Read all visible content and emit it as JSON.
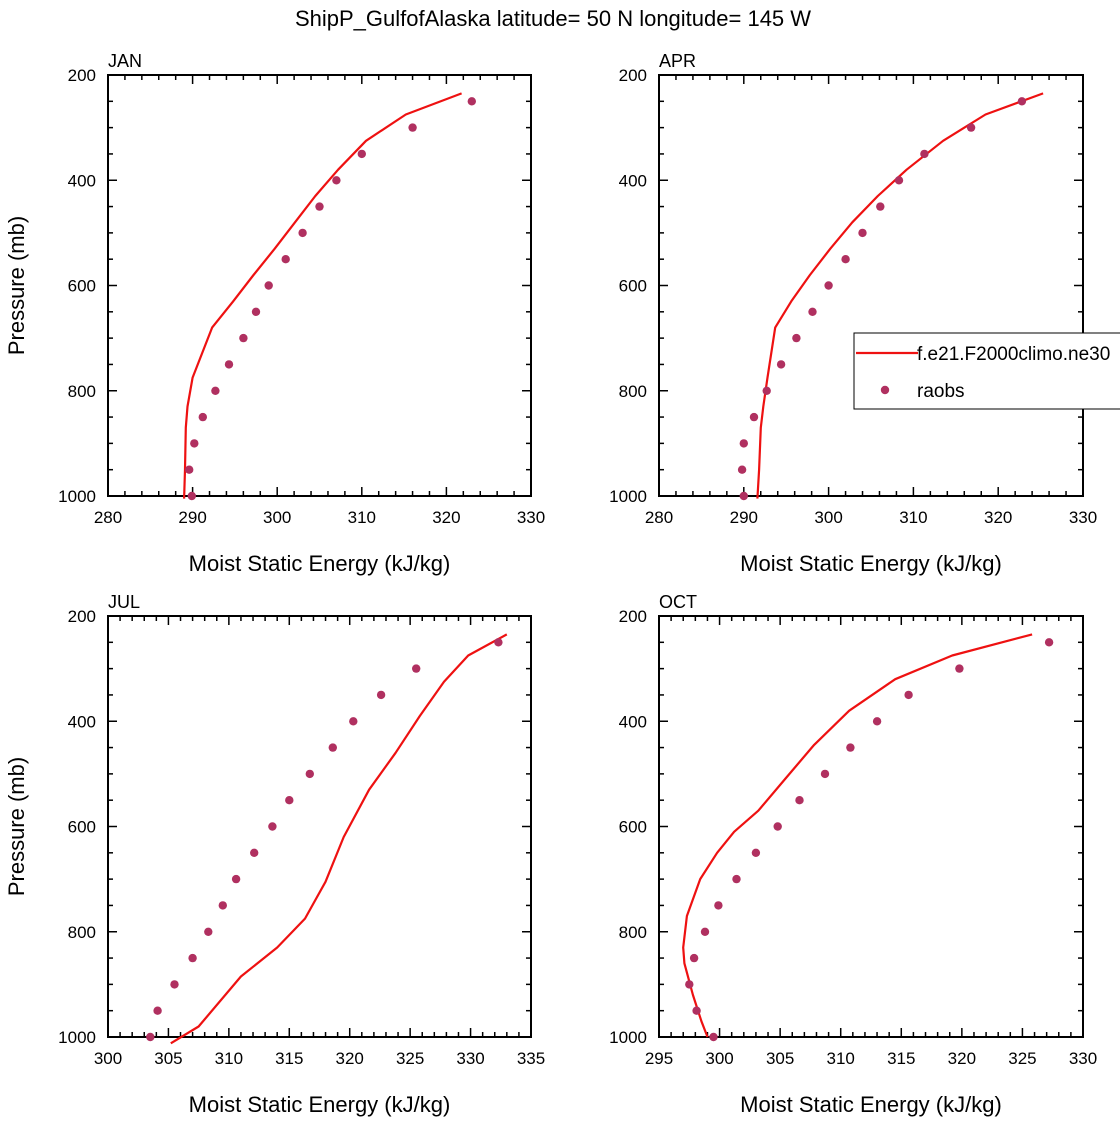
{
  "figure_title": "ShipP_GulfofAlaska  latitude= 50 N longitude= 145 W",
  "colors": {
    "model": "#ee1111",
    "obs": "#b03060",
    "axis": "#000000"
  },
  "legend": {
    "model_label": "f.e21.F2000climo.ne30",
    "obs_label": "raobs"
  },
  "chart_data": [
    {
      "type": "line+scatter",
      "panel": "JAN",
      "title": "JAN",
      "xlabel": "Moist Static Energy (kJ/kg)",
      "ylabel": "Pressure (mb)",
      "xlim": [
        280,
        330
      ],
      "ylim": [
        1000,
        200
      ],
      "grid": false,
      "xticks": [
        280,
        290,
        300,
        310,
        320,
        330
      ],
      "xticklabels": [
        "280",
        "290",
        "300",
        "310",
        "320",
        "330"
      ],
      "yticks": [
        200,
        400,
        600,
        800,
        1000
      ],
      "yticklabels": [
        "200",
        "400",
        "600",
        "800",
        "1000"
      ],
      "model": {
        "name": "f.e21.F2000climo.ne30",
        "x": [
          321.8,
          315.2,
          310.5,
          307.2,
          304.5,
          302.1,
          299.7,
          297.2,
          294.8,
          292.3,
          290.0,
          289.4,
          289.2,
          289.1,
          289.0
        ],
        "y": [
          235,
          275,
          325,
          380,
          430,
          480,
          530,
          580,
          630,
          680,
          775,
          830,
          870,
          950,
          1005
        ]
      },
      "obs": {
        "name": "raobs",
        "x": [
          323.0,
          316.0,
          310.0,
          307.0,
          305.0,
          303.0,
          301.0,
          299.0,
          297.5,
          296.0,
          294.3,
          292.7,
          291.2,
          290.2,
          289.6,
          289.9
        ],
        "y": [
          250,
          300,
          350,
          400,
          450,
          500,
          550,
          600,
          650,
          700,
          750,
          800,
          850,
          900,
          950,
          1000
        ]
      }
    },
    {
      "type": "line+scatter",
      "panel": "APR",
      "title": "APR",
      "xlabel": "Moist Static Energy (kJ/kg)",
      "ylabel": "",
      "xlim": [
        280,
        330
      ],
      "ylim": [
        1000,
        200
      ],
      "grid": false,
      "xticks": [
        280,
        290,
        300,
        310,
        320,
        330
      ],
      "xticklabels": [
        "280",
        "290",
        "300",
        "310",
        "320",
        "330"
      ],
      "yticks": [
        200,
        400,
        600,
        800,
        1000
      ],
      "yticklabels": [
        "200",
        "400",
        "600",
        "800",
        "1000"
      ],
      "model": {
        "name": "f.e21.F2000climo.ne30",
        "x": [
          325.3,
          318.5,
          313.5,
          309.2,
          305.8,
          302.8,
          300.2,
          297.8,
          295.6,
          293.7,
          292.8,
          292.3,
          292.0,
          291.8,
          291.6
        ],
        "y": [
          235,
          275,
          325,
          380,
          430,
          480,
          530,
          580,
          630,
          680,
          775,
          830,
          870,
          950,
          1005
        ]
      },
      "obs": {
        "name": "raobs",
        "x": [
          322.8,
          316.8,
          311.3,
          308.3,
          306.1,
          304.0,
          302.0,
          300.0,
          298.1,
          296.2,
          294.4,
          292.7,
          291.2,
          290.0,
          289.8,
          290.0
        ],
        "y": [
          250,
          300,
          350,
          400,
          450,
          500,
          550,
          600,
          650,
          700,
          750,
          800,
          850,
          900,
          950,
          1000
        ]
      }
    },
    {
      "type": "line+scatter",
      "panel": "JUL",
      "title": "JUL",
      "xlabel": "Moist Static Energy (kJ/kg)",
      "ylabel": "Pressure (mb)",
      "xlim": [
        300,
        335
      ],
      "ylim": [
        1000,
        200
      ],
      "grid": false,
      "xticks": [
        300,
        305,
        310,
        315,
        320,
        325,
        330,
        335
      ],
      "xticklabels": [
        "300",
        "305",
        "310",
        "315",
        "320",
        "325",
        "330",
        "335"
      ],
      "yticks": [
        200,
        400,
        600,
        800,
        1000
      ],
      "yticklabels": [
        "200",
        "400",
        "600",
        "800",
        "1000"
      ],
      "model": {
        "name": "f.e21.F2000climo.ne30",
        "x": [
          333.0,
          329.8,
          327.8,
          325.8,
          323.8,
          321.6,
          319.5,
          318.0,
          316.3,
          314.0,
          311.0,
          307.5,
          305.2
        ],
        "y": [
          235,
          275,
          325,
          390,
          460,
          530,
          620,
          705,
          775,
          830,
          885,
          980,
          1012
        ]
      },
      "obs": {
        "name": "raobs",
        "x": [
          332.3,
          325.5,
          322.6,
          320.3,
          318.6,
          316.7,
          315.0,
          313.6,
          312.1,
          310.6,
          309.5,
          308.3,
          307.0,
          305.5,
          304.1,
          303.5
        ],
        "y": [
          250,
          300,
          350,
          400,
          450,
          500,
          550,
          600,
          650,
          700,
          750,
          800,
          850,
          900,
          950,
          1000
        ]
      }
    },
    {
      "type": "line+scatter",
      "panel": "OCT",
      "title": "OCT",
      "xlabel": "Moist Static Energy (kJ/kg)",
      "ylabel": "",
      "xlim": [
        295,
        330
      ],
      "ylim": [
        1000,
        200
      ],
      "grid": false,
      "xticks": [
        295,
        300,
        305,
        310,
        315,
        320,
        325,
        330
      ],
      "xticklabels": [
        "295",
        "300",
        "305",
        "310",
        "315",
        "320",
        "325",
        "330"
      ],
      "yticks": [
        200,
        400,
        600,
        800,
        1000
      ],
      "yticklabels": [
        "200",
        "400",
        "600",
        "800",
        "1000"
      ],
      "model": {
        "name": "f.e21.F2000climo.ne30",
        "x": [
          325.8,
          319.2,
          314.5,
          310.7,
          307.8,
          305.4,
          303.2,
          301.2,
          299.8,
          298.4,
          297.3,
          297.0,
          297.1,
          297.8,
          298.5,
          299.0
        ],
        "y": [
          235,
          275,
          320,
          380,
          445,
          510,
          570,
          610,
          650,
          700,
          770,
          830,
          860,
          920,
          970,
          1000
        ]
      },
      "obs": {
        "name": "raobs",
        "x": [
          327.2,
          319.8,
          315.6,
          313.0,
          310.8,
          308.7,
          306.6,
          304.8,
          303.0,
          301.4,
          299.9,
          298.8,
          297.9,
          297.5,
          298.1,
          299.5
        ],
        "y": [
          250,
          300,
          350,
          400,
          450,
          500,
          550,
          600,
          650,
          700,
          750,
          800,
          850,
          900,
          950,
          1000
        ]
      }
    }
  ]
}
